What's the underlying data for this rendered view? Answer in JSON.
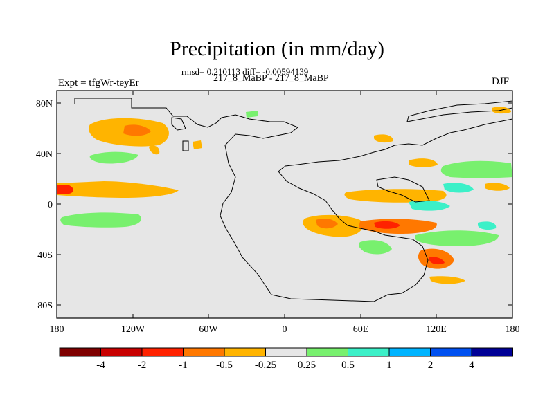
{
  "title": "Precipitation (in mm/day)",
  "stats_line": "rmsd= 0.210113 diff= -0.00594139",
  "subtitle": "217_8_MaBP - 217_8_MaBP",
  "left_label": "Expt = tfgWr-teyEr",
  "right_label": "DJF",
  "map": {
    "background_color": "#e6e6e6",
    "lat_ticks": [
      "80N",
      "40N",
      "0",
      "40S",
      "80S"
    ],
    "lon_ticks": [
      "180",
      "120W",
      "60W",
      "0",
      "60E",
      "120E",
      "180"
    ]
  },
  "colorbar": {
    "colors": [
      "#7f0000",
      "#c80000",
      "#ff2200",
      "#ff7800",
      "#ffb400",
      "#e6e6e6",
      "#78f06e",
      "#3cf0c8",
      "#00b4ff",
      "#0050f0",
      "#000096"
    ],
    "labels": [
      "-4",
      "-2",
      "-1",
      "-0.5",
      "-0.25",
      "0.25",
      "0.5",
      "1",
      "2",
      "4"
    ]
  }
}
